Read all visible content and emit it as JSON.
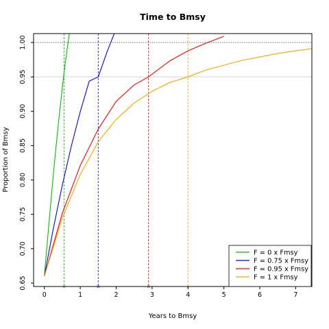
{
  "chart_data": {
    "type": "line",
    "title": "Time to Bmsy",
    "xlabel": "Years to Bmsy",
    "ylabel": "Proportion of Bmsy",
    "xlim": [
      -0.3,
      7.45
    ],
    "ylim": [
      0.645,
      1.013
    ],
    "x_ticks": [
      0,
      1,
      2,
      3,
      4,
      5,
      6,
      7
    ],
    "y_ticks": [
      0.65,
      0.7,
      0.75,
      0.8,
      0.85,
      0.9,
      0.95,
      1.0
    ],
    "y_tick_labels": [
      "0.65",
      "0.70",
      "0.75",
      "0.80",
      "0.85",
      "0.90",
      "0.95",
      "1.00"
    ],
    "start_value": 0.66,
    "reference_line": {
      "y": 1.0,
      "style": "dotted",
      "color": "#000000"
    },
    "grid_line": {
      "y": 0.95,
      "color": "#d3d3d3"
    },
    "legend_position": "bottom-right",
    "series": [
      {
        "name": "F = 0 x Fmsy",
        "color": "#00c000",
        "x": [
          0,
          0.1,
          0.2,
          0.3,
          0.4,
          0.5,
          0.55,
          0.6,
          0.7
        ],
        "y": [
          0.66,
          0.7207,
          0.7793,
          0.8349,
          0.8868,
          0.9343,
          0.9562,
          0.977,
          1.0149
        ],
        "time_to_95pct": 0.55
      },
      {
        "name": "F = 0.75 x Fmsy",
        "color": "#0000ff",
        "x": [
          0,
          0.25,
          0.5,
          0.75,
          1.0,
          1.25,
          1.5,
          1.75,
          2.0
        ],
        "y": [
          0.66,
          0.7294,
          0.7924,
          0.849,
          0.8994,
          0.9439,
          0.95,
          0.987,
          1.02
        ],
        "time_to_95pct": 1.5
      },
      {
        "name": "F = 0.95 x Fmsy",
        "color": "#ff0000",
        "x": [
          0,
          0.5,
          1.0,
          1.5,
          2.0,
          2.5,
          2.9,
          3.5,
          4.0,
          4.5,
          5.0
        ],
        "y": [
          0.66,
          0.7515,
          0.821,
          0.874,
          0.9145,
          0.9383,
          0.95,
          0.9735,
          0.988,
          0.999,
          1.009
        ],
        "time_to_95pct": 2.9
      },
      {
        "name": "F = 1 x Fmsy",
        "color": "#ffa500",
        "x": [
          0,
          0.5,
          1.0,
          1.5,
          2.0,
          2.5,
          3.0,
          3.5,
          4.0,
          4.5,
          5.0,
          5.5,
          6.0,
          6.5,
          7.0,
          7.45
        ],
        "y": [
          0.66,
          0.7445,
          0.808,
          0.8555,
          0.888,
          0.912,
          0.929,
          0.942,
          0.95,
          0.96,
          0.967,
          0.974,
          0.979,
          0.984,
          0.988,
          0.991
        ],
        "time_to_95pct": 4.0
      }
    ]
  }
}
